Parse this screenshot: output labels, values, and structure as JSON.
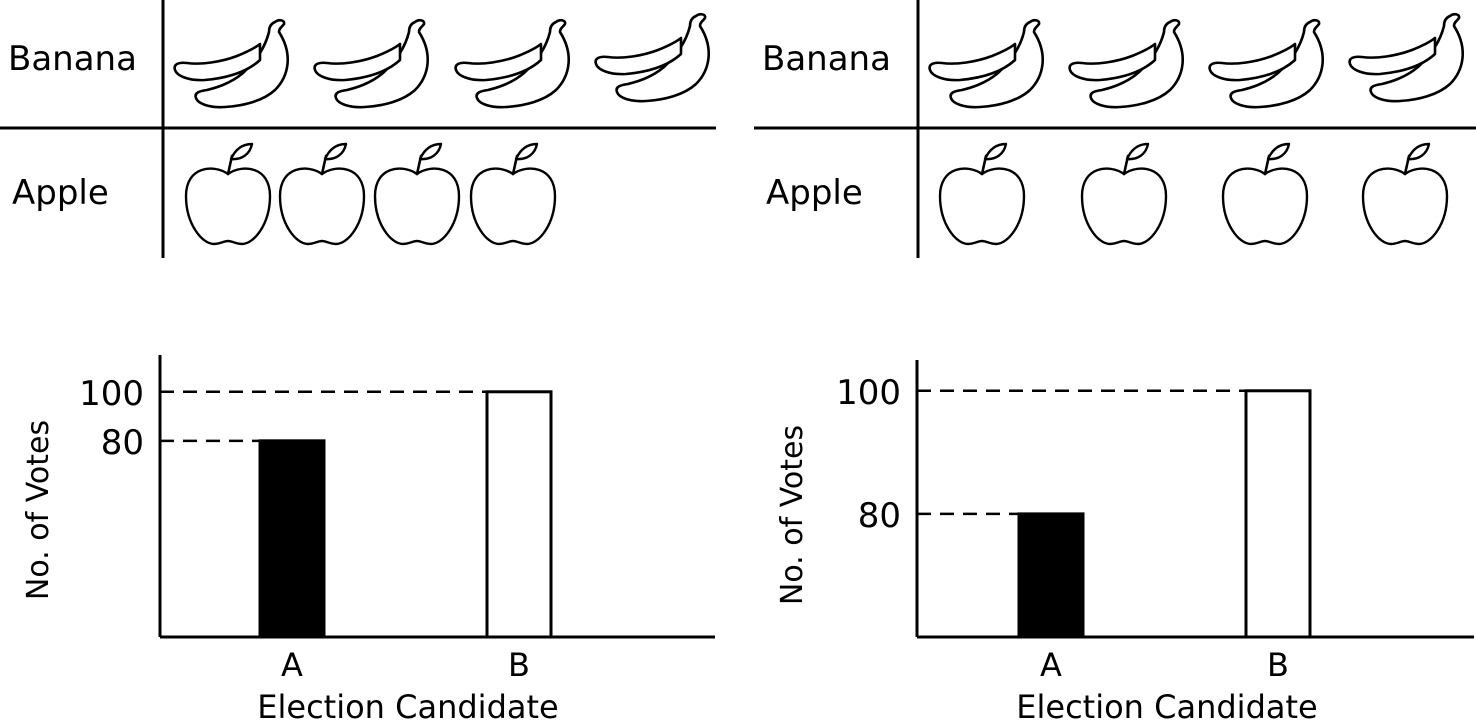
{
  "pictographs": [
    {
      "rows": [
        {
          "label": "Banana",
          "icon": "banana-icon",
          "count": 4,
          "spacing": "tight"
        },
        {
          "label": "Apple",
          "icon": "apple-icon",
          "count": 4,
          "spacing": "tight"
        }
      ]
    },
    {
      "rows": [
        {
          "label": "Banana",
          "icon": "banana-icon",
          "count": 4,
          "spacing": "wide"
        },
        {
          "label": "Apple",
          "icon": "apple-icon",
          "count": 4,
          "spacing": "wide"
        }
      ]
    }
  ],
  "chart_data": [
    {
      "type": "bar",
      "categories": [
        "A",
        "B"
      ],
      "values": [
        80,
        100
      ],
      "bar_fills": [
        "#000000",
        "#ffffff"
      ],
      "ytick_labels": [
        "80",
        "100"
      ],
      "ylim": [
        0,
        115
      ],
      "xlabel": "Election Candidate",
      "ylabel": "No. of Votes",
      "reference_lines": "dashed",
      "grid": false
    },
    {
      "type": "bar",
      "categories": [
        "A",
        "B"
      ],
      "values": [
        80,
        100
      ],
      "bar_fills": [
        "#000000",
        "#ffffff"
      ],
      "ytick_labels": [
        "80",
        "100"
      ],
      "ylim": [
        60,
        105
      ],
      "xlabel": "Election Candidate",
      "ylabel": "No. of Votes",
      "reference_lines": "dashed",
      "grid": false
    }
  ]
}
